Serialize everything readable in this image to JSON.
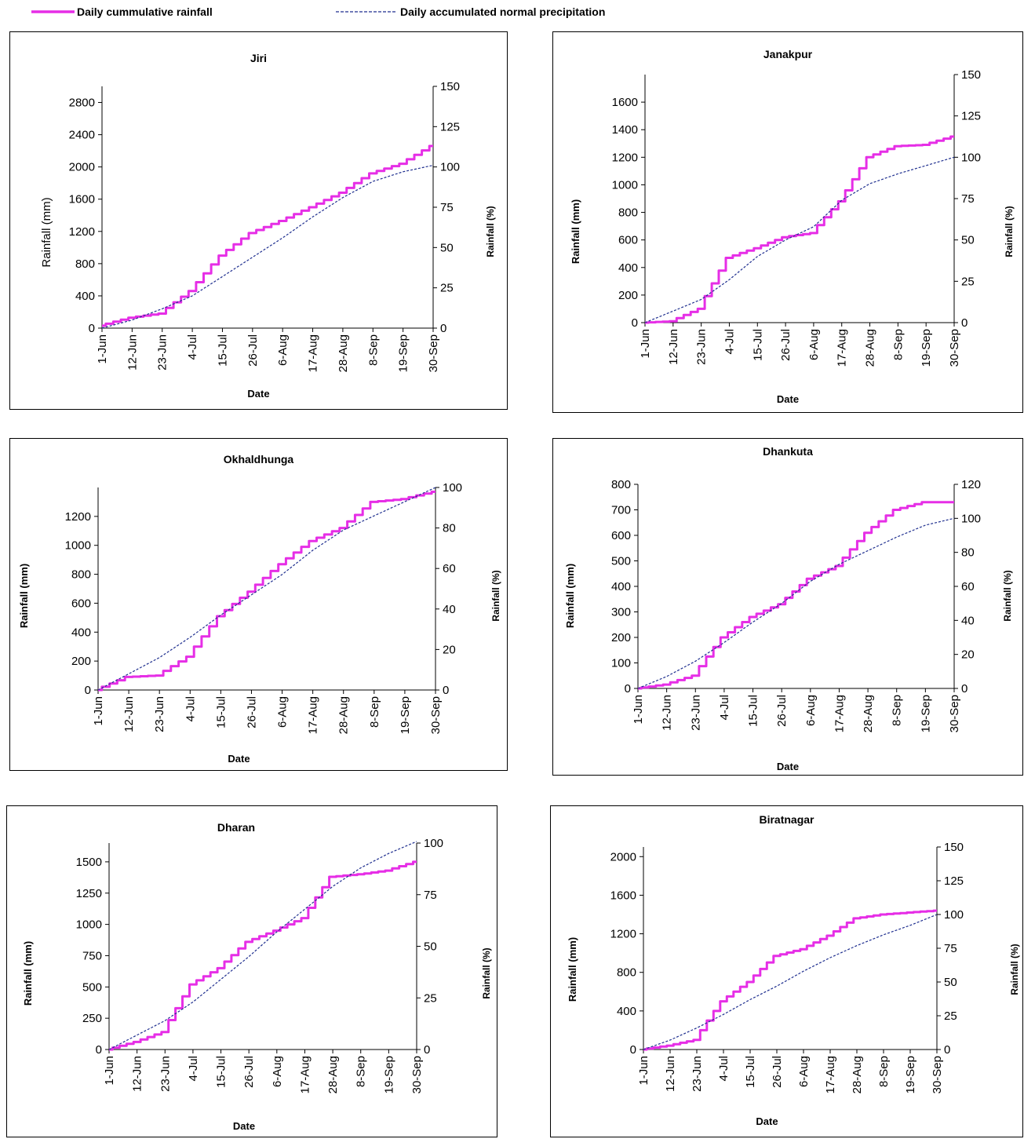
{
  "legend": [
    {
      "label": "Daily cummulative rainfall",
      "color": "#e62ee6",
      "style": "solid"
    },
    {
      "label": "Daily accumulated normal precipitation",
      "color": "#1f2f8f",
      "style": "dashed"
    }
  ],
  "xticks": [
    "1-Jun",
    "12-Jun",
    "23-Jun",
    "4-Jul",
    "15-Jul",
    "26-Jul",
    "6-Aug",
    "17-Aug",
    "28-Aug",
    "8-Sep",
    "19-Sep",
    "30-Sep"
  ],
  "chart_data": [
    {
      "type": "line",
      "title": "Jiri",
      "xlabel": "Date",
      "ylabel": "Rainfall (mm)",
      "y2label": "Rainfall (%)",
      "ylim": [
        0,
        3000
      ],
      "yticks": [
        0,
        400,
        800,
        1200,
        1600,
        2000,
        2400,
        2800
      ],
      "y2lim": [
        0,
        150
      ],
      "y2ticks": [
        0,
        25,
        50,
        75,
        100,
        125,
        150
      ],
      "series": [
        {
          "name": "Daily cummulative rainfall",
          "axis": "left",
          "color": "#e62ee6",
          "style": "solid",
          "x": [
            "1-Jun",
            "12-Jun",
            "23-Jun",
            "4-Jul",
            "15-Jul",
            "26-Jul",
            "6-Aug",
            "17-Aug",
            "28-Aug",
            "8-Sep",
            "19-Sep",
            "30-Sep"
          ],
          "values": [
            30,
            130,
            180,
            460,
            900,
            1180,
            1330,
            1500,
            1680,
            1920,
            2040,
            2260
          ]
        },
        {
          "name": "Daily accumulated normal precipitation",
          "axis": "right",
          "color": "#1f2f8f",
          "style": "dashed",
          "x": [
            "1-Jun",
            "12-Jun",
            "23-Jun",
            "4-Jul",
            "15-Jul",
            "26-Jul",
            "6-Aug",
            "17-Aug",
            "28-Aug",
            "8-Sep",
            "19-Sep",
            "30-Sep"
          ],
          "values": [
            0,
            5,
            12,
            20,
            32,
            44,
            56,
            69,
            81,
            91,
            97,
            101
          ]
        }
      ]
    },
    {
      "type": "line",
      "title": "Janakpur",
      "xlabel": "Date",
      "ylabel": "Rainfall (mm)",
      "y2label": "Rainfall (%)",
      "ylim": [
        0,
        1800
      ],
      "yticks": [
        0,
        200,
        400,
        600,
        800,
        1000,
        1200,
        1400,
        1600
      ],
      "y2lim": [
        0,
        150
      ],
      "y2ticks": [
        0,
        25,
        50,
        75,
        100,
        125,
        150
      ],
      "series": [
        {
          "name": "Daily cummulative rainfall",
          "axis": "left",
          "color": "#e62ee6",
          "style": "solid",
          "x": [
            "1-Jun",
            "12-Jun",
            "23-Jun",
            "4-Jul",
            "15-Jul",
            "26-Jul",
            "6-Aug",
            "17-Aug",
            "28-Aug",
            "8-Sep",
            "19-Sep",
            "30-Sep"
          ],
          "values": [
            0,
            10,
            100,
            470,
            540,
            620,
            650,
            880,
            1200,
            1280,
            1290,
            1350
          ]
        },
        {
          "name": "Daily accumulated normal precipitation",
          "axis": "right",
          "color": "#1f2f8f",
          "style": "dashed",
          "x": [
            "1-Jun",
            "12-Jun",
            "23-Jun",
            "4-Jul",
            "15-Jul",
            "26-Jul",
            "6-Aug",
            "17-Aug",
            "28-Aug",
            "8-Sep",
            "19-Sep",
            "30-Sep"
          ],
          "values": [
            0,
            7,
            14,
            26,
            40,
            50,
            58,
            74,
            84,
            90,
            95,
            100
          ]
        }
      ]
    },
    {
      "type": "line",
      "title": "Okhaldhunga",
      "xlabel": "Date",
      "ylabel": "Rainfall (mm)",
      "y2label": "Rainfall (%)",
      "ylim": [
        0,
        1400
      ],
      "yticks": [
        0,
        200,
        400,
        600,
        800,
        1000,
        1200
      ],
      "y2lim": [
        0,
        100
      ],
      "y2ticks": [
        0,
        20,
        40,
        60,
        80,
        100
      ],
      "series": [
        {
          "name": "Daily cummulative rainfall",
          "axis": "left",
          "color": "#e62ee6",
          "style": "solid",
          "x": [
            "1-Jun",
            "12-Jun",
            "23-Jun",
            "4-Jul",
            "15-Jul",
            "26-Jul",
            "6-Aug",
            "17-Aug",
            "28-Aug",
            "8-Sep",
            "19-Sep",
            "30-Sep"
          ],
          "values": [
            0,
            90,
            100,
            230,
            510,
            680,
            870,
            1030,
            1120,
            1300,
            1320,
            1370
          ]
        },
        {
          "name": "Daily accumulated normal precipitation",
          "axis": "right",
          "color": "#1f2f8f",
          "style": "dashed",
          "x": [
            "1-Jun",
            "12-Jun",
            "23-Jun",
            "4-Jul",
            "15-Jul",
            "26-Jul",
            "6-Aug",
            "17-Aug",
            "28-Aug",
            "8-Sep",
            "19-Sep",
            "30-Sep"
          ],
          "values": [
            0,
            8,
            16,
            26,
            37,
            47,
            57,
            69,
            79,
            86,
            93,
            100
          ]
        }
      ]
    },
    {
      "type": "line",
      "title": "Dhankuta",
      "xlabel": "Date",
      "ylabel": "Rainfall (mm)",
      "y2label": "Rainfall (%)",
      "ylim": [
        0,
        800
      ],
      "yticks": [
        0,
        100,
        200,
        300,
        400,
        500,
        600,
        700,
        800
      ],
      "y2lim": [
        0,
        120
      ],
      "y2ticks": [
        0,
        20,
        40,
        60,
        80,
        100,
        120
      ],
      "series": [
        {
          "name": "Daily cummulative rainfall",
          "axis": "left",
          "color": "#e62ee6",
          "style": "solid",
          "x": [
            "1-Jun",
            "12-Jun",
            "23-Jun",
            "4-Jul",
            "15-Jul",
            "26-Jul",
            "6-Aug",
            "17-Aug",
            "28-Aug",
            "8-Sep",
            "19-Sep",
            "30-Sep"
          ],
          "values": [
            0,
            15,
            50,
            200,
            280,
            330,
            430,
            480,
            610,
            700,
            730,
            730
          ]
        },
        {
          "name": "Daily accumulated normal precipitation",
          "axis": "right",
          "color": "#1f2f8f",
          "style": "dashed",
          "x": [
            "1-Jun",
            "12-Jun",
            "23-Jun",
            "4-Jul",
            "15-Jul",
            "26-Jul",
            "6-Aug",
            "17-Aug",
            "28-Aug",
            "8-Sep",
            "19-Sep",
            "30-Sep"
          ],
          "values": [
            0,
            7,
            16,
            27,
            39,
            50,
            63,
            73,
            81,
            89,
            96,
            100
          ]
        }
      ]
    },
    {
      "type": "line",
      "title": "Dharan",
      "xlabel": "Date",
      "ylabel": "Rainfall (mm)",
      "y2label": "Rainfall (%)",
      "ylim": [
        0,
        1650
      ],
      "yticks": [
        0,
        250,
        500,
        750,
        1000,
        1250,
        1500
      ],
      "y2lim": [
        0,
        100
      ],
      "y2ticks": [
        0,
        25,
        50,
        75,
        100
      ],
      "series": [
        {
          "name": "Daily cummulative rainfall",
          "axis": "left",
          "color": "#e62ee6",
          "style": "solid",
          "x": [
            "1-Jun",
            "12-Jun",
            "23-Jun",
            "4-Jul",
            "15-Jul",
            "26-Jul",
            "6-Aug",
            "17-Aug",
            "28-Aug",
            "8-Sep",
            "19-Sep",
            "30-Sep"
          ],
          "values": [
            0,
            60,
            140,
            520,
            650,
            860,
            950,
            1050,
            1380,
            1400,
            1430,
            1500
          ]
        },
        {
          "name": "Daily accumulated normal precipitation",
          "axis": "right",
          "color": "#1f2f8f",
          "style": "dashed",
          "x": [
            "1-Jun",
            "12-Jun",
            "23-Jun",
            "4-Jul",
            "15-Jul",
            "26-Jul",
            "6-Aug",
            "17-Aug",
            "28-Aug",
            "8-Sep",
            "19-Sep",
            "30-Sep"
          ],
          "values": [
            0,
            7,
            14,
            23,
            34,
            45,
            57,
            68,
            79,
            88,
            95,
            102
          ]
        }
      ]
    },
    {
      "type": "line",
      "title": "Biratnagar",
      "xlabel": "Date",
      "ylabel": "Rainfall (mm)",
      "y2label": "Rainfall (%)",
      "ylim": [
        0,
        2100
      ],
      "yticks": [
        0,
        400,
        800,
        1200,
        1600,
        2000
      ],
      "y2lim": [
        0,
        150
      ],
      "y2ticks": [
        0,
        25,
        50,
        75,
        100,
        125,
        150
      ],
      "series": [
        {
          "name": "Daily cummulative rainfall",
          "axis": "left",
          "color": "#e62ee6",
          "style": "solid",
          "x": [
            "1-Jun",
            "12-Jun",
            "23-Jun",
            "4-Jul",
            "15-Jul",
            "26-Jul",
            "6-Aug",
            "17-Aug",
            "28-Aug",
            "8-Sep",
            "19-Sep",
            "30-Sep"
          ],
          "values": [
            0,
            40,
            100,
            500,
            700,
            970,
            1040,
            1180,
            1360,
            1400,
            1420,
            1440
          ]
        },
        {
          "name": "Daily accumulated normal precipitation",
          "axis": "right",
          "color": "#1f2f8f",
          "style": "dashed",
          "x": [
            "1-Jun",
            "12-Jun",
            "23-Jun",
            "4-Jul",
            "15-Jul",
            "26-Jul",
            "6-Aug",
            "17-Aug",
            "28-Aug",
            "8-Sep",
            "19-Sep",
            "30-Sep"
          ],
          "values": [
            0,
            7,
            16,
            26,
            37,
            47,
            58,
            68,
            77,
            85,
            92,
            100
          ]
        }
      ]
    }
  ]
}
